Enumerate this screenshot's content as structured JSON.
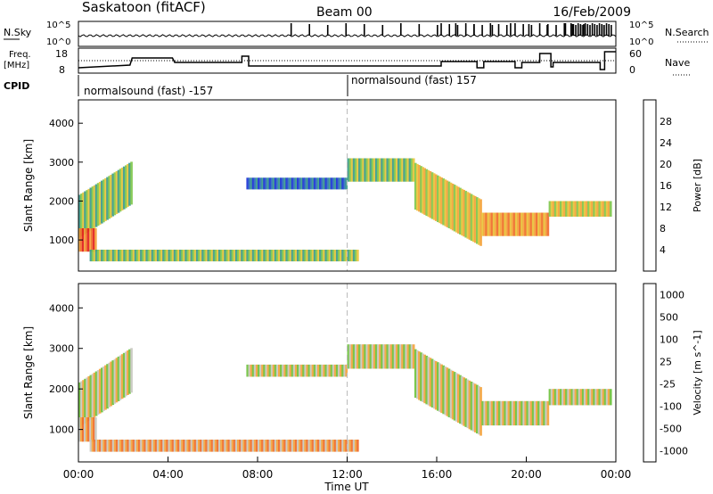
{
  "header": {
    "station": "Saskatoon (fitACF)",
    "beam": "Beam 00",
    "date": "16/Feb/2009"
  },
  "strip_labels": {
    "nsky": "N.Sky",
    "nsearch": "N.Search",
    "freq_line1": "Freq.",
    "freq_line2": "[MHz]",
    "nave": "Nave",
    "cpid": "CPID",
    "nsky_ticks": [
      "10^5",
      "10^0"
    ],
    "freq_ticks": [
      "18",
      "8"
    ],
    "nave_ticks": [
      "60",
      "0"
    ]
  },
  "cpid_segments": [
    {
      "label": "normalsound (fast) -157",
      "start_hour": 0
    },
    {
      "label": "normalsound (fast) 157",
      "start_hour": 12
    }
  ],
  "chart_data": [
    {
      "type": "heatmap",
      "panel": "power",
      "ylabel": "Slant Range [km]",
      "xlabel": "",
      "x_ticks": [
        "00:00",
        "04:00",
        "08:00",
        "12:00",
        "16:00",
        "20:00",
        "00:00"
      ],
      "x_tick_hours": [
        0,
        4,
        8,
        12,
        16,
        20,
        24
      ],
      "xlim": [
        0,
        24
      ],
      "y_ticks": [
        1000,
        2000,
        3000,
        4000
      ],
      "ylim": [
        200,
        4600
      ],
      "colorbar_label": "Power [dB]",
      "colorbar_ticks": [
        "4",
        "8",
        "12",
        "16",
        "20",
        "24",
        "28"
      ],
      "colorbar_colors": [
        "#1a2fd8",
        "#2e6fbd",
        "#3a9a8c",
        "#7ec64a",
        "#e8c43a",
        "#f5a23a",
        "#f06a2a",
        "#e01e1e"
      ],
      "bands": [
        {
          "t0": 0.0,
          "t1": 2.4,
          "r0": 1500,
          "r1": 2600,
          "tilt": 1,
          "color_index": 3
        },
        {
          "t0": 0.0,
          "t1": 0.8,
          "r0": 700,
          "r1": 1300,
          "tilt": 0,
          "color_index": 6
        },
        {
          "t0": 0.5,
          "t1": 12.5,
          "r0": 450,
          "r1": 750,
          "tilt": 0,
          "color_index": 3
        },
        {
          "t0": 7.5,
          "t1": 12.0,
          "r0": 2300,
          "r1": 2600,
          "tilt": 0,
          "color_index": 1
        },
        {
          "t0": 12.0,
          "t1": 15.0,
          "r0": 2500,
          "r1": 3100,
          "tilt": 0,
          "color_index": 3
        },
        {
          "t0": 15.0,
          "t1": 18.0,
          "r0": 1300,
          "r1": 2500,
          "tilt": -1,
          "color_index": 4
        },
        {
          "t0": 18.0,
          "t1": 21.0,
          "r0": 1100,
          "r1": 1700,
          "tilt": 0,
          "color_index": 5
        },
        {
          "t0": 21.0,
          "t1": 23.8,
          "r0": 1600,
          "r1": 2000,
          "tilt": 0,
          "color_index": 4
        }
      ]
    },
    {
      "type": "heatmap",
      "panel": "velocity",
      "ylabel": "Slant Range [km]",
      "xlabel": "Time UT",
      "x_ticks": [
        "00:00",
        "04:00",
        "08:00",
        "12:00",
        "16:00",
        "20:00",
        "00:00"
      ],
      "x_tick_hours": [
        0,
        4,
        8,
        12,
        16,
        20,
        24
      ],
      "xlim": [
        0,
        24
      ],
      "y_ticks": [
        1000,
        2000,
        3000,
        4000
      ],
      "ylim": [
        200,
        4600
      ],
      "colorbar_label": "Velocity [m s^-1]",
      "colorbar_ticks": [
        "1000",
        "500",
        "100",
        "25",
        "-25",
        "-100",
        "-500",
        "-1000"
      ],
      "colorbar_colors": [
        "#1a2fd8",
        "#2e6fbd",
        "#3a9a8c",
        "#6cc23a",
        "#c8c8c0",
        "#f5a23a",
        "#f06a2a",
        "#e01e1e"
      ],
      "bands": [
        {
          "t0": 0.0,
          "t1": 2.4,
          "r0": 1500,
          "r1": 2600,
          "tilt": 1,
          "color_index": 4
        },
        {
          "t0": 0.0,
          "t1": 0.8,
          "r0": 700,
          "r1": 1300,
          "tilt": 0,
          "color_index": 5
        },
        {
          "t0": 0.5,
          "t1": 12.5,
          "r0": 450,
          "r1": 750,
          "tilt": 0,
          "color_index": 5
        },
        {
          "t0": 7.5,
          "t1": 12.0,
          "r0": 2300,
          "r1": 2600,
          "tilt": 0,
          "color_index": 4
        },
        {
          "t0": 12.0,
          "t1": 15.0,
          "r0": 2500,
          "r1": 3100,
          "tilt": 0,
          "color_index": 4
        },
        {
          "t0": 15.0,
          "t1": 18.0,
          "r0": 1300,
          "r1": 2500,
          "tilt": -1,
          "color_index": 4
        },
        {
          "t0": 18.0,
          "t1": 21.0,
          "r0": 1100,
          "r1": 1700,
          "tilt": 0,
          "color_index": 4
        },
        {
          "t0": 21.0,
          "t1": 23.8,
          "r0": 1600,
          "r1": 2000,
          "tilt": 0,
          "color_index": 4
        }
      ]
    }
  ]
}
